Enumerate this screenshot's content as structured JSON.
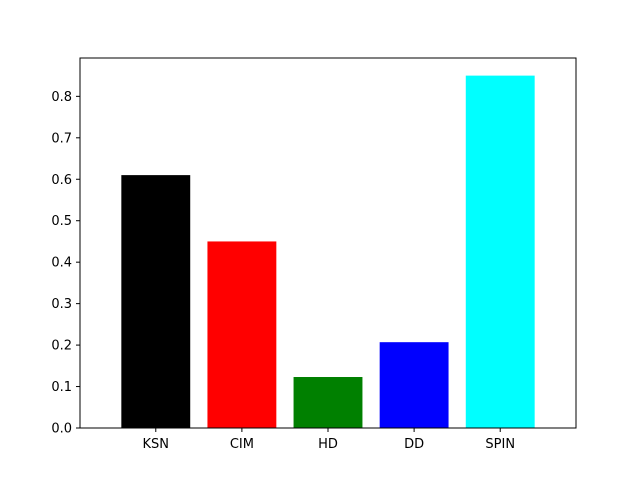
{
  "chart_data": {
    "type": "bar",
    "title": "",
    "xlabel": "",
    "ylabel": "",
    "categories": [
      "KSN",
      "CIM",
      "HD",
      "DD",
      "SPIN"
    ],
    "values": [
      0.61,
      0.45,
      0.123,
      0.207,
      0.85
    ],
    "colors": [
      "#000000",
      "#ff0000",
      "#008000",
      "#0000ff",
      "#00ffff"
    ],
    "ylim": [
      0,
      0.8925
    ],
    "yticks": [
      0.0,
      0.1,
      0.2,
      0.3,
      0.4,
      0.5,
      0.6,
      0.7,
      0.8
    ],
    "ytick_labels": [
      "0.0",
      "0.1",
      "0.2",
      "0.3",
      "0.4",
      "0.5",
      "0.6",
      "0.7",
      "0.8"
    ],
    "grid": false,
    "legend": "none"
  }
}
